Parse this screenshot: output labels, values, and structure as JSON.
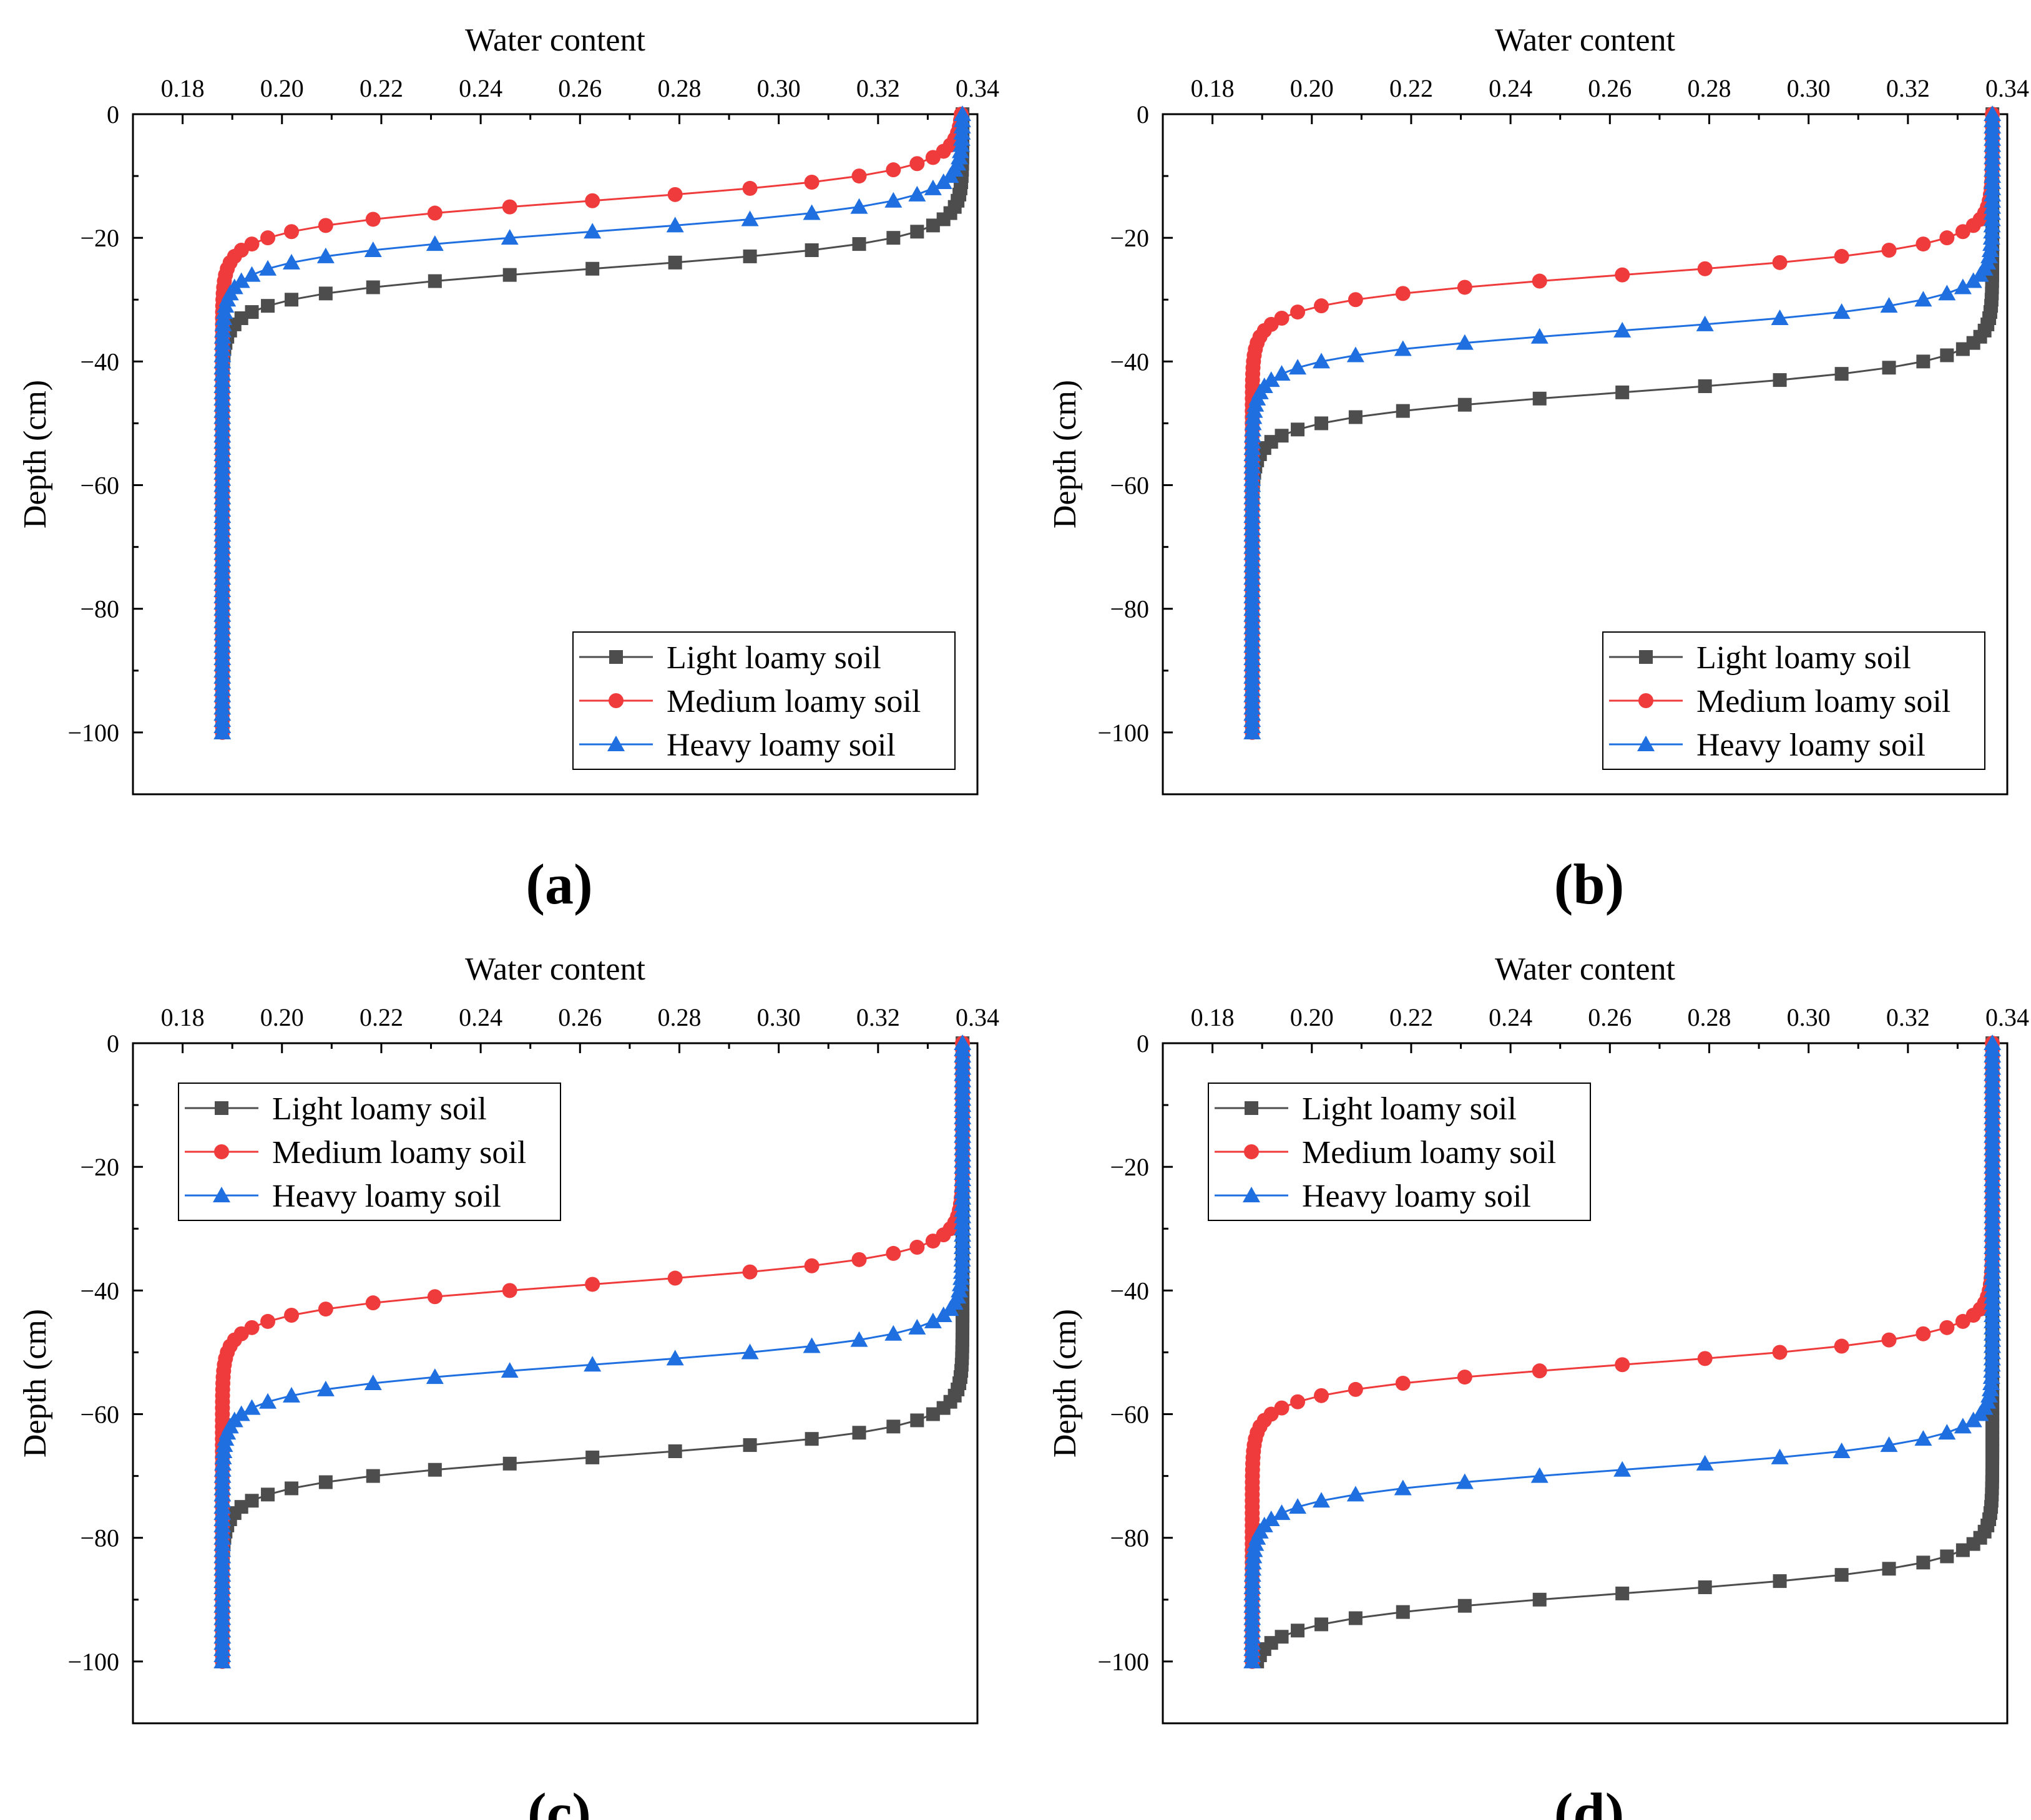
{
  "colors": {
    "light": "#4d4d4d",
    "medium": "#ef3b3b",
    "heavy": "#1f6fe0",
    "axis": "#000000"
  },
  "chart_data": [
    {
      "panel_label": "(a)",
      "type": "line",
      "x_axis_title": "Water content",
      "y_axis_title": "Depth (cm)",
      "xlim": [
        0.17,
        0.34
      ],
      "ylim": [
        -110,
        0
      ],
      "x_ticks": [
        "0.18",
        "0.20",
        "0.22",
        "0.24",
        "0.26",
        "0.28",
        "0.30",
        "0.32",
        "0.34"
      ],
      "y_ticks": [
        "0",
        "−20",
        "−40",
        "−60",
        "−80",
        "−100"
      ],
      "legend_position": "bottom-right",
      "grid": false,
      "series": [
        {
          "name": "Light loamy soil",
          "color_key": "light",
          "marker": "square",
          "front_depth": 25
        },
        {
          "name": "Medium loamy soil",
          "color_key": "medium",
          "marker": "circle",
          "front_depth": 14
        },
        {
          "name": "Heavy loamy soil",
          "color_key": "heavy",
          "marker": "triangle",
          "front_depth": 19
        }
      ],
      "theta_saturated": 0.337,
      "theta_initial": 0.188
    },
    {
      "panel_label": "(b)",
      "type": "line",
      "x_axis_title": "Water content",
      "y_axis_title": "Depth (cm)",
      "xlim": [
        0.17,
        0.34
      ],
      "ylim": [
        -110,
        0
      ],
      "x_ticks": [
        "0.18",
        "0.20",
        "0.22",
        "0.24",
        "0.26",
        "0.28",
        "0.30",
        "0.32",
        "0.34"
      ],
      "y_ticks": [
        "0",
        "−20",
        "−40",
        "−60",
        "−80",
        "−100"
      ],
      "legend_position": "bottom-right",
      "grid": false,
      "series": [
        {
          "name": "Light loamy soil",
          "color_key": "light",
          "marker": "square",
          "front_depth": 45
        },
        {
          "name": "Medium loamy soil",
          "color_key": "medium",
          "marker": "circle",
          "front_depth": 26
        },
        {
          "name": "Heavy loamy soil",
          "color_key": "heavy",
          "marker": "triangle",
          "front_depth": 35
        }
      ],
      "theta_saturated": 0.337,
      "theta_initial": 0.188
    },
    {
      "panel_label": "(c)",
      "type": "line",
      "x_axis_title": "Water content",
      "y_axis_title": "Depth (cm)",
      "xlim": [
        0.17,
        0.34
      ],
      "ylim": [
        -110,
        0
      ],
      "x_ticks": [
        "0.18",
        "0.20",
        "0.22",
        "0.24",
        "0.26",
        "0.28",
        "0.30",
        "0.32",
        "0.34"
      ],
      "y_ticks": [
        "0",
        "−20",
        "−40",
        "−60",
        "−80",
        "−100"
      ],
      "legend_position": "top-left",
      "grid": false,
      "series": [
        {
          "name": "Light loamy soil",
          "color_key": "light",
          "marker": "square",
          "front_depth": 67
        },
        {
          "name": "Medium loamy soil",
          "color_key": "medium",
          "marker": "circle",
          "front_depth": 39
        },
        {
          "name": "Heavy loamy soil",
          "color_key": "heavy",
          "marker": "triangle",
          "front_depth": 52
        }
      ],
      "theta_saturated": 0.337,
      "theta_initial": 0.188
    },
    {
      "panel_label": "(d)",
      "type": "line",
      "x_axis_title": "Water content",
      "y_axis_title": "Depth (cm)",
      "xlim": [
        0.17,
        0.34
      ],
      "ylim": [
        -110,
        0
      ],
      "x_ticks": [
        "0.18",
        "0.20",
        "0.22",
        "0.24",
        "0.26",
        "0.28",
        "0.30",
        "0.32",
        "0.34"
      ],
      "y_ticks": [
        "0",
        "−20",
        "−40",
        "−60",
        "−80",
        "−100"
      ],
      "legend_position": "top-left",
      "grid": false,
      "series": [
        {
          "name": "Light loamy soil",
          "color_key": "light",
          "marker": "square",
          "front_depth": 89
        },
        {
          "name": "Medium loamy soil",
          "color_key": "medium",
          "marker": "circle",
          "front_depth": 52
        },
        {
          "name": "Heavy loamy soil",
          "color_key": "heavy",
          "marker": "triangle",
          "front_depth": 69
        }
      ],
      "theta_saturated": 0.337,
      "theta_initial": 0.188
    }
  ]
}
